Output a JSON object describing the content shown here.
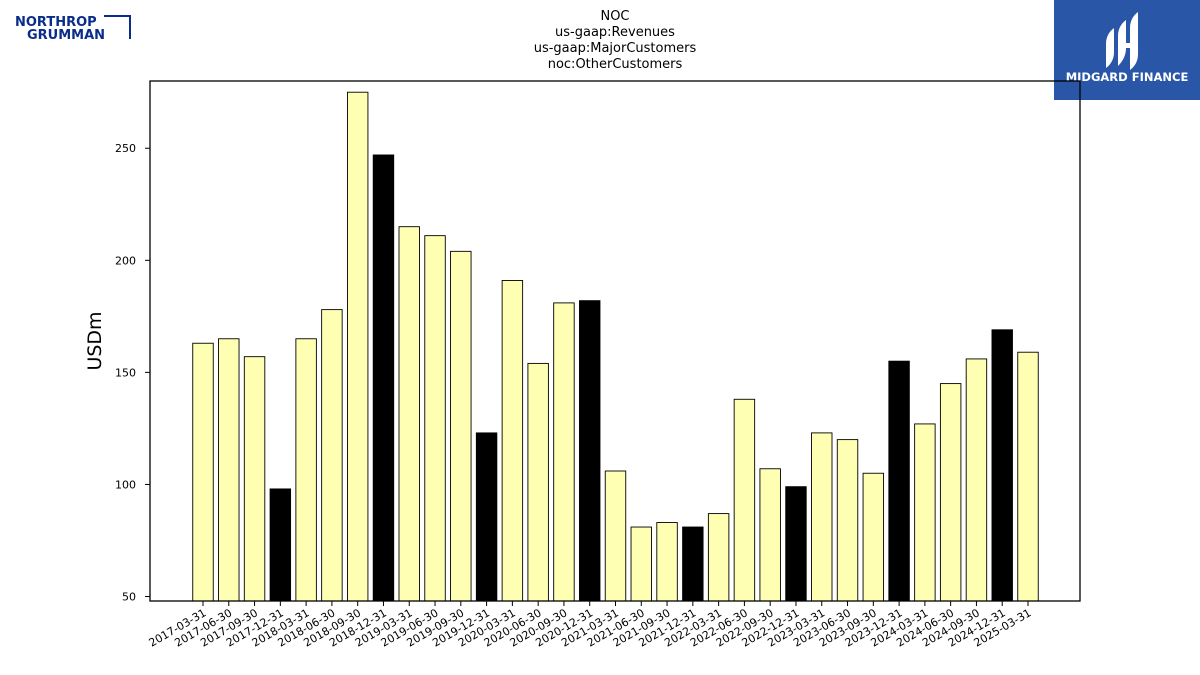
{
  "header": {
    "left_logo_line1": "NORTHROP",
    "left_logo_line2": "GRUMMAN",
    "right_logo_text": "MIDGARD FINANCE"
  },
  "colors": {
    "bar_light": "#ffffb3",
    "bar_dark": "#000000",
    "logo_blue": "#0a2d8c",
    "badge_blue": "#2a56a8"
  },
  "chart_data": {
    "type": "bar",
    "title_lines": [
      "NOC",
      "us-gaap:Revenues",
      "us-gaap:MajorCustomers",
      "noc:OtherCustomers"
    ],
    "xlabel": "",
    "ylabel": "USDm",
    "ylim": [
      48,
      280
    ],
    "yticks": [
      50,
      100,
      150,
      200,
      250
    ],
    "grid": false,
    "categories": [
      "2017-03-31",
      "2017-06-30",
      "2017-09-30",
      "2017-12-31",
      "2018-03-31",
      "2018-06-30",
      "2018-09-30",
      "2018-12-31",
      "2019-03-31",
      "2019-06-30",
      "2019-09-30",
      "2019-12-31",
      "2020-03-31",
      "2020-06-30",
      "2020-09-30",
      "2020-12-31",
      "2021-03-31",
      "2021-06-30",
      "2021-09-30",
      "2021-12-31",
      "2022-03-31",
      "2022-06-30",
      "2022-09-30",
      "2022-12-31",
      "2023-03-31",
      "2023-06-30",
      "2023-09-30",
      "2023-12-31",
      "2024-03-31",
      "2024-06-30",
      "2024-09-30",
      "2024-12-31",
      "2025-03-31"
    ],
    "values": [
      163,
      165,
      157,
      98,
      165,
      178,
      275,
      247,
      215,
      211,
      204,
      123,
      191,
      154,
      181,
      182,
      106,
      81,
      83,
      81,
      87,
      138,
      107,
      99,
      123,
      120,
      105,
      155,
      127,
      145,
      156,
      169,
      159
    ],
    "highlight_year_end": [
      false,
      false,
      false,
      true,
      false,
      false,
      false,
      true,
      false,
      false,
      false,
      true,
      false,
      false,
      false,
      true,
      false,
      false,
      false,
      true,
      false,
      false,
      false,
      true,
      false,
      false,
      false,
      true,
      false,
      false,
      false,
      true,
      false
    ]
  }
}
